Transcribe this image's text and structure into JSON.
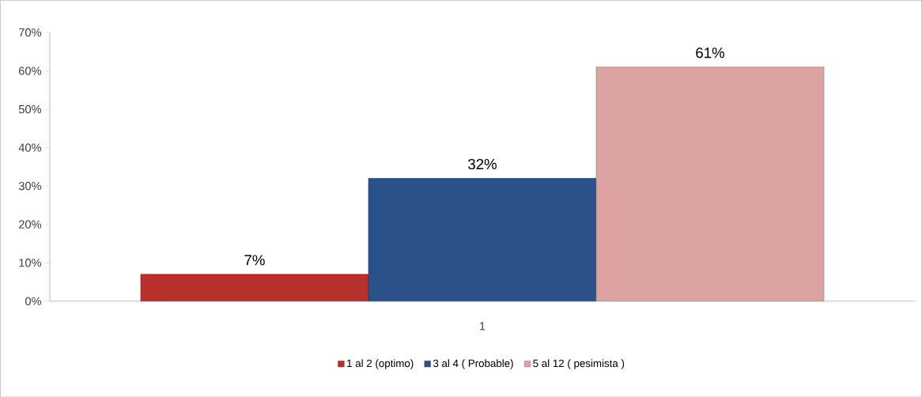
{
  "chart_data": {
    "type": "bar",
    "categories": [
      "1"
    ],
    "series": [
      {
        "name": "1 al 2  (optimo)",
        "color": "#b8302c",
        "values": [
          7
        ],
        "value_labels": [
          "7%"
        ]
      },
      {
        "name": "3 al 4 ( Probable)",
        "color": "#2a5189",
        "values": [
          32
        ],
        "value_labels": [
          "32%"
        ]
      },
      {
        "name": "5 al 12 ( pesimista )",
        "color": "#dca3a3",
        "values": [
          61
        ],
        "value_labels": [
          "61%"
        ]
      }
    ],
    "ylim": [
      0,
      70
    ],
    "yticks": [
      {
        "value": 0,
        "label": "0%"
      },
      {
        "value": 10,
        "label": "10%"
      },
      {
        "value": 20,
        "label": "20%"
      },
      {
        "value": 30,
        "label": "30%"
      },
      {
        "value": 40,
        "label": "40%"
      },
      {
        "value": 50,
        "label": "50%"
      },
      {
        "value": 60,
        "label": "60%"
      },
      {
        "value": 70,
        "label": "70%"
      }
    ],
    "grid": false,
    "legend": "bottom"
  }
}
